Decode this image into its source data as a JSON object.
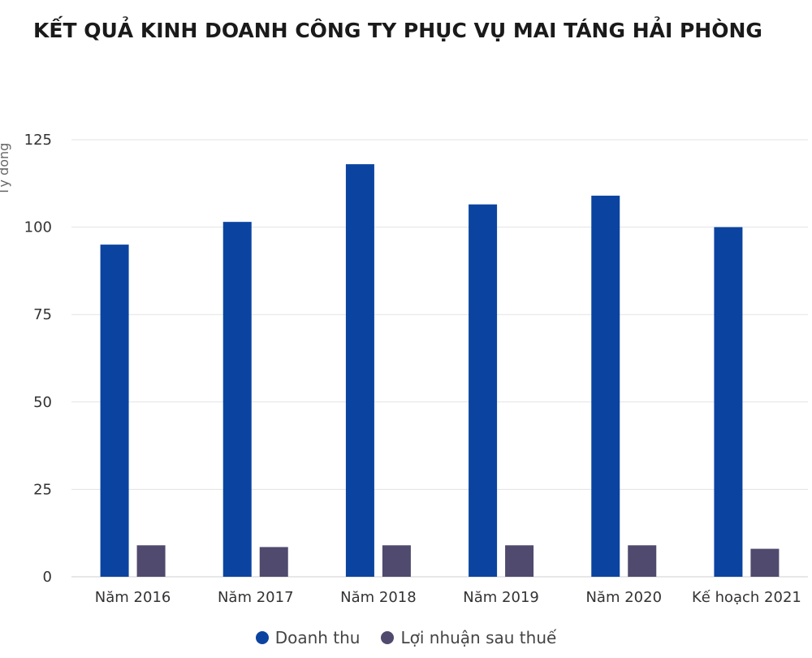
{
  "chart_data": {
    "type": "bar",
    "title": "KẾT QUẢ KINH DOANH CÔNG TY PHỤC VỤ MAI TÁNG HẢI PHÒNG",
    "ylabel": "Tỷ đồng",
    "xlabel": "",
    "ylim": [
      0,
      125
    ],
    "yticks": [
      0,
      25,
      50,
      75,
      100,
      125
    ],
    "grid": true,
    "legend_position": "bottom",
    "categories": [
      "Năm 2016",
      "Năm 2017",
      "Năm 2018",
      "Năm 2019",
      "Năm 2020",
      "Kế hoạch 2021"
    ],
    "series": [
      {
        "name": "Doanh thu",
        "color": "#0b44a0",
        "values": [
          95,
          101.5,
          118,
          106.5,
          109,
          100
        ]
      },
      {
        "name": "Lợi nhuận sau thuế",
        "color": "#4f4a6e",
        "values": [
          9,
          8.5,
          9,
          9,
          9,
          8
        ]
      }
    ]
  }
}
